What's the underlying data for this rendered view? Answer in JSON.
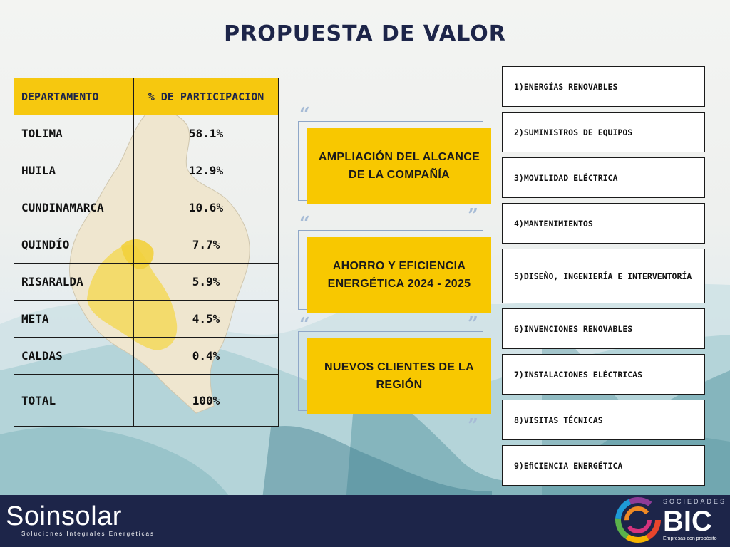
{
  "title": "PROPUESTA DE VALOR",
  "table": {
    "headers": [
      "DEPARTAMENTO",
      "% DE PARTICIPACION"
    ],
    "rows": [
      {
        "name": "TOLIMA",
        "value": "58.1%"
      },
      {
        "name": "HUILA",
        "value": "12.9%"
      },
      {
        "name": "CUNDINAMARCA",
        "value": "10.6%"
      },
      {
        "name": "QUINDÍO",
        "value": "7.7%"
      },
      {
        "name": "RISARALDA",
        "value": "5.9%"
      },
      {
        "name": "META",
        "value": "4.5%"
      },
      {
        "name": "CALDAS",
        "value": "0.4%"
      }
    ],
    "total": {
      "name": "TOTAL",
      "value": "100%"
    }
  },
  "quotes": [
    "AMPLIACIÓN DEL ALCANCE DE LA COMPAÑÍA",
    "AHORRO Y EFICIENCIA ENERGÉTICA 2024 - 2025",
    "NUEVOS CLIENTES DE LA REGIÓN"
  ],
  "services": [
    "1)ENERGÍAS RENOVABLES",
    "2)SUMINISTROS DE EQUIPOS",
    "3)MOVILIDAD ELÉCTRICA",
    "4)MANTENIMIENTOS",
    "5)DISEÑO, INGENIERÍA E INTERVENTORÍA",
    "6)INVENCIONES RENOVABLES",
    "7)INSTALACIONES ELÉCTRICAS",
    "8)VISITAS TÉCNICAS",
    "9)EﬁCIENCIA ENERGÉTICA"
  ],
  "footer": {
    "brand": "Soinsolar",
    "brand_tagline": "Soluciones Integrales Energéticas",
    "bic_top": "SOCIEDADES",
    "bic_main": "BIC",
    "bic_tagline": "Empresas con propósito"
  },
  "colors": {
    "accent_yellow": "#f8c800",
    "navy": "#1d2549",
    "quote_frame": "#8fa7c8"
  },
  "icons": [
    "colombia-map",
    "open-quote-icon",
    "close-quote-icon",
    "bic-swirl-logo"
  ]
}
